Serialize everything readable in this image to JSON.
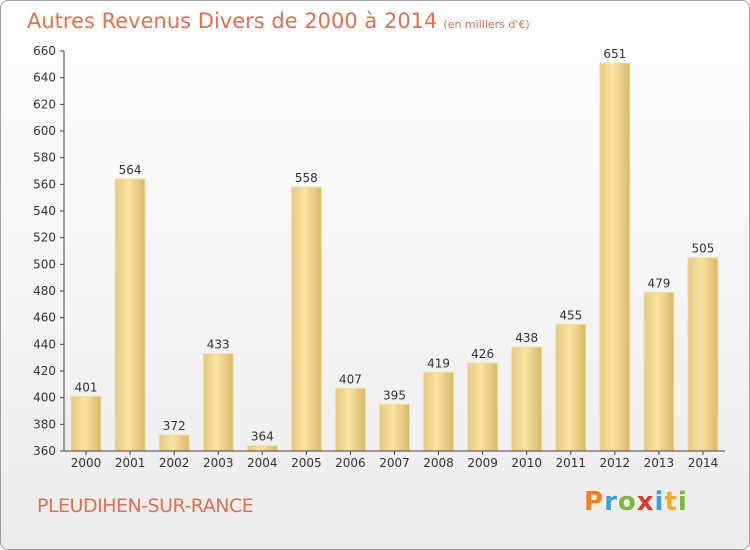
{
  "header": {
    "title": "Autres Revenus Divers de 2000 à 2014",
    "unit": "(en milliers d'€)"
  },
  "commune_name": "PLEUDIHEN-SUR-RANCE",
  "logo": {
    "letters": [
      "P",
      "r",
      "o",
      "x",
      "i",
      "t",
      "i"
    ],
    "colors": [
      "#f08020",
      "#3aa0d8",
      "#7cb83c",
      "#e03828",
      "#3aa0d8",
      "#f0b020",
      "#7cb83c"
    ]
  },
  "colors": {
    "accent": "#e07050",
    "bar_light": "#f8e4a0",
    "bar_dark": "#c8a860"
  },
  "chart_data": {
    "type": "bar",
    "categories": [
      "2000",
      "2001",
      "2002",
      "2003",
      "2004",
      "2005",
      "2006",
      "2007",
      "2008",
      "2009",
      "2010",
      "2011",
      "2012",
      "2013",
      "2014"
    ],
    "values": [
      401,
      564,
      372,
      433,
      364,
      558,
      407,
      395,
      419,
      426,
      438,
      455,
      651,
      479,
      505
    ],
    "ylim": [
      360,
      660
    ],
    "yticks": [
      360,
      380,
      400,
      420,
      440,
      460,
      480,
      500,
      520,
      540,
      560,
      580,
      600,
      620,
      640,
      660
    ],
    "grid": false,
    "title": "Autres Revenus Divers de 2000 à 2014",
    "xlabel": "",
    "ylabel": ""
  }
}
